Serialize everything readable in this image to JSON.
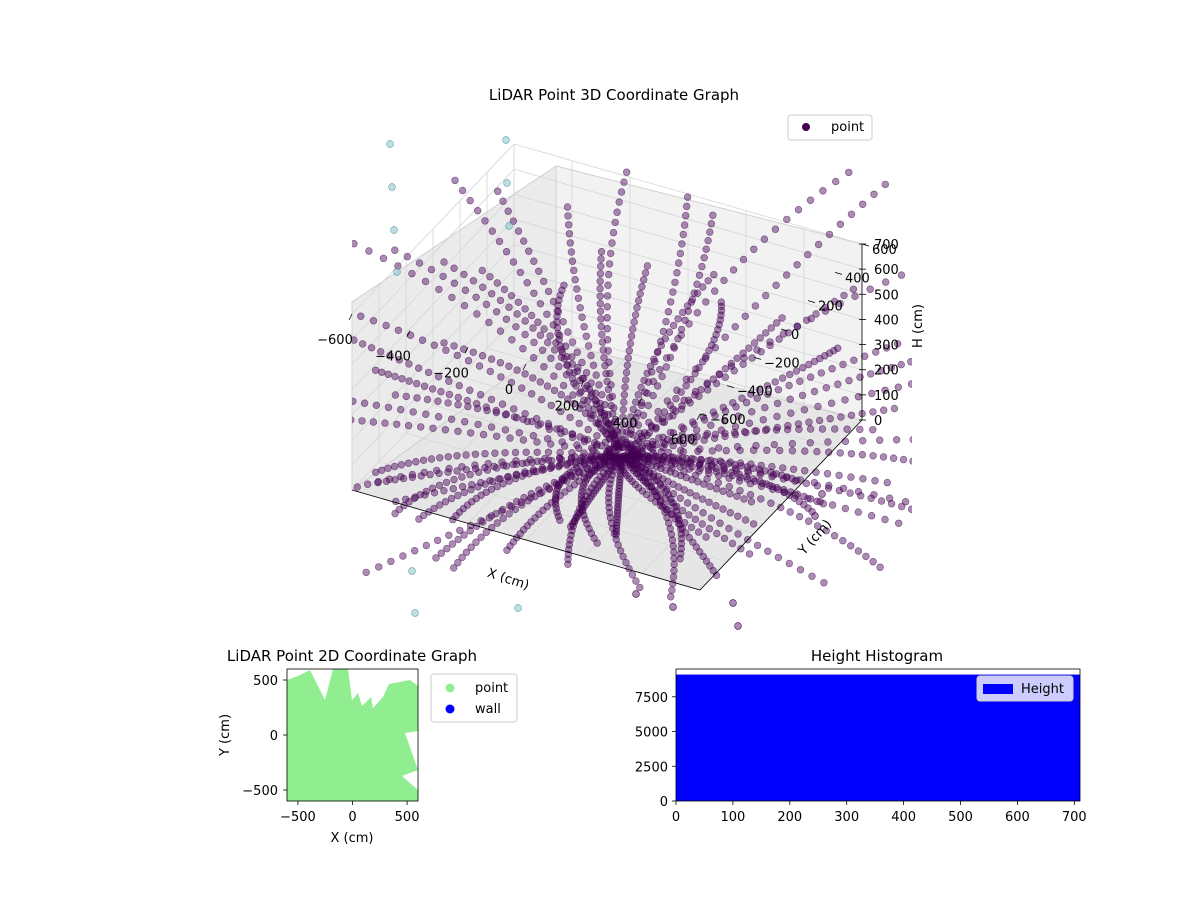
{
  "chart_data": [
    {
      "type": "scatter",
      "projection": "3d",
      "title": "LiDAR Point 3D Coordinate Graph",
      "xlabel": "X (cm)",
      "ylabel": "Y (cm)",
      "zlabel": "H (cm)",
      "xlim": [
        -600,
        600
      ],
      "ylim": [
        -600,
        600
      ],
      "zlim": [
        0,
        700
      ],
      "z_inverted": true,
      "x_ticks": [
        "−600",
        "−400",
        "−200",
        "0",
        "200",
        "400",
        "600"
      ],
      "y_ticks": [
        "−600",
        "−400",
        "−200",
        "0",
        "200",
        "400",
        "600"
      ],
      "z_ticks": [
        "0",
        "100",
        "200",
        "300",
        "400",
        "500",
        "600",
        "700"
      ],
      "grid": true,
      "legend": {
        "position": "top-right",
        "entries": [
          {
            "label": "point",
            "color": "#440154"
          }
        ]
      },
      "series": [
        {
          "name": "point",
          "color": "#440154",
          "alpha": 0.5,
          "description_points": "radial arcs of points emanating from a center near (0,0,500)"
        },
        {
          "name": "",
          "color": "#7fbfc6",
          "alpha": 0.5,
          "description_points": "sparse column of points"
        }
      ]
    },
    {
      "type": "scatter",
      "title": "LiDAR Point 2D Coordinate Graph",
      "xlabel": "X (cm)",
      "ylabel": "Y (cm)",
      "xlim": [
        -600,
        600
      ],
      "ylim": [
        -600,
        600
      ],
      "x_ticks": [
        "−500",
        "0",
        "500"
      ],
      "y_ticks": [
        "−500",
        "0",
        "500"
      ],
      "legend": {
        "position": "outside-right",
        "entries": [
          {
            "label": "point",
            "color": "#90ee90"
          },
          {
            "label": "wall",
            "color": "#0000ff"
          }
        ]
      }
    },
    {
      "type": "bar",
      "title": "Height Histogram",
      "xlim": [
        0,
        710
      ],
      "ylim": [
        0,
        9500
      ],
      "x_ticks": [
        "0",
        "100",
        "200",
        "300",
        "400",
        "500",
        "600",
        "700"
      ],
      "y_ticks": [
        "0",
        "2500",
        "5000",
        "7500"
      ],
      "legend": {
        "position": "top-right",
        "entries": [
          {
            "label": "Height",
            "color": "#0000ff"
          }
        ]
      },
      "series": [
        {
          "name": "Height",
          "color": "#0000ff",
          "bin_range": [
            0,
            710
          ],
          "value": 9100
        }
      ]
    }
  ]
}
